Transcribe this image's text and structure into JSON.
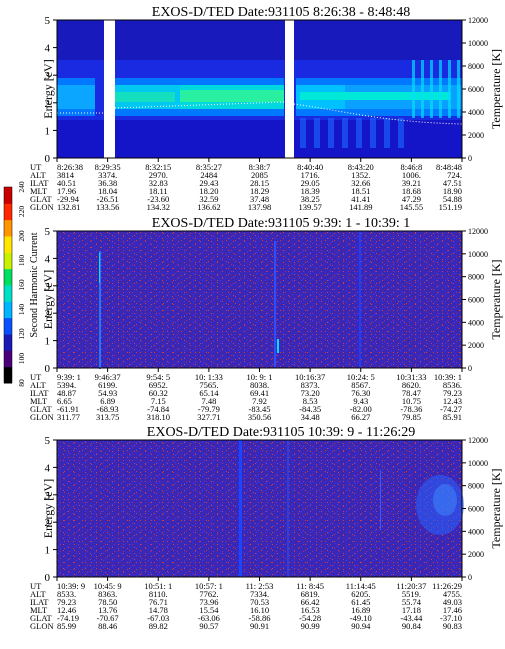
{
  "colorbar": {
    "label": "Second Harmonic Current",
    "ticks": [
      "240",
      "220",
      "200",
      "180",
      "160",
      "140",
      "120",
      "100",
      "80"
    ],
    "colors": [
      "#000000",
      "#4a0078",
      "#1a1ab4",
      "#0a50ff",
      "#00b4ff",
      "#00e0c8",
      "#00e060",
      "#c8f000",
      "#ffe600",
      "#ff9600",
      "#ff2800",
      "#c80000"
    ]
  },
  "chart_data": [
    {
      "type": "heatmap",
      "title": "EXOS-D/TED   Date:931105  8:26:38 - 8:48:48",
      "ylabel": "Energy [eV]",
      "ylabel_right": "Temperature [K]",
      "ylim": [
        0,
        5
      ],
      "yticks": [
        "0",
        "1",
        "2",
        "3",
        "4",
        "5"
      ],
      "ylim_right": [
        0,
        12000
      ],
      "yticks_right": [
        "0",
        "2000",
        "4000",
        "6000",
        "8000",
        "10000",
        "12000"
      ],
      "xlabels": [
        "8:26:38",
        "8:29:35",
        "8:32:15",
        "8:35:27",
        "8:38:7",
        "8:40:40",
        "8:43:20",
        "8:46:8",
        "8:48:48"
      ],
      "ephemeris": [
        {
          "name": "UT",
          "values": [
            "8:26:38",
            "8:29:35",
            "8:32:15",
            "8:35:27",
            "8:38:7",
            "8:40:40",
            "8:43:20",
            "8:46:8",
            "8:48:48"
          ]
        },
        {
          "name": "ALT",
          "values": [
            "3814",
            "3374.",
            "2970.",
            "2484",
            "2085",
            "1716.",
            "1352.",
            "1006.",
            "724."
          ]
        },
        {
          "name": "ILAT",
          "values": [
            "40.51",
            "36.38",
            "32.83",
            "29.43",
            "28.15",
            "29.05",
            "32.66",
            "39.21",
            "47.51"
          ]
        },
        {
          "name": "MLT",
          "values": [
            "17.96",
            "18.04",
            "18.11",
            "18.20",
            "18.29",
            "18.39",
            "18.51",
            "18.68",
            "18.90"
          ]
        },
        {
          "name": "GLAT",
          "values": [
            "-29.94",
            "-26.51",
            "-23.60",
            "32.59",
            "37.48",
            "38.25",
            "41.41",
            "47.29",
            "54.88"
          ]
        },
        {
          "name": "GLON",
          "values": [
            "132.81",
            "133.56",
            "134.32",
            "136.62",
            "137.98",
            "139.57",
            "141.89",
            "145.55",
            "151.19"
          ]
        }
      ]
    },
    {
      "type": "heatmap",
      "title": "EXOS-D/TED   Date:931105  9:39: 1 - 10:39: 1",
      "ylabel": "Energy [eV]",
      "ylabel_right": "Temperature [K]",
      "ylim": [
        0,
        5
      ],
      "yticks": [
        "0",
        "1",
        "2",
        "3",
        "4",
        "5"
      ],
      "ylim_right": [
        0,
        12000
      ],
      "yticks_right": [
        "0",
        "2000",
        "4000",
        "6000",
        "8000",
        "10000",
        "12000"
      ],
      "xlabels": [
        "9:39: 1",
        "9:46:37",
        "9:54: 5",
        "10: 1:33",
        "10: 9: 1",
        "10:16:37",
        "10:24: 5",
        "10:31:33",
        "10:39: 1"
      ],
      "ephemeris": [
        {
          "name": "UT",
          "values": [
            "9:39: 1",
            "9:46:37",
            "9:54: 5",
            "10: 1:33",
            "10: 9: 1",
            "10:16:37",
            "10:24: 5",
            "10:31:33",
            "10:39: 1"
          ]
        },
        {
          "name": "ALT",
          "values": [
            "5394.",
            "6199.",
            "6952.",
            "7565.",
            "8038.",
            "8373.",
            "8567.",
            "8620.",
            "8536."
          ]
        },
        {
          "name": "ILAT",
          "values": [
            "48.87",
            "54.93",
            "60.32",
            "65.14",
            "69.41",
            "73.20",
            "76.30",
            "78.47",
            "79.23"
          ]
        },
        {
          "name": "MLT",
          "values": [
            "6.65",
            "6.89",
            "7.15",
            "7.48",
            "7.92",
            "8.53",
            "9.43",
            "10.75",
            "12.43"
          ]
        },
        {
          "name": "GLAT",
          "values": [
            "-61.91",
            "-68.93",
            "-74.84",
            "-79.79",
            "-83.45",
            "-84.35",
            "-82.00",
            "-78.36",
            "-74.27"
          ]
        },
        {
          "name": "GLON",
          "values": [
            "311.77",
            "313.75",
            "318.10",
            "327.71",
            "350.56",
            "34.48",
            "66.27",
            "79.85",
            "85.91"
          ]
        }
      ]
    },
    {
      "type": "heatmap",
      "title": "EXOS-D/TED   Date:931105  10:39: 9 - 11:26:29",
      "ylabel": "Energy [eV]",
      "ylabel_right": "Temperature [K]",
      "ylim": [
        0,
        5
      ],
      "yticks": [
        "0",
        "1",
        "2",
        "3",
        "4",
        "5"
      ],
      "ylim_right": [
        0,
        12000
      ],
      "yticks_right": [
        "0",
        "2000",
        "4000",
        "6000",
        "8000",
        "10000",
        "12000"
      ],
      "xlabels": [
        "10:39: 9",
        "10:45: 9",
        "10:51: 1",
        "10:57: 1",
        "11: 2:53",
        "11: 8:45",
        "11:14:45",
        "11:20:37",
        "11:26:29"
      ],
      "ephemeris": [
        {
          "name": "UT",
          "values": [
            "10:39: 9",
            "10:45: 9",
            "10:51: 1",
            "10:57: 1",
            "11: 2:53",
            "11: 8:45",
            "11:14:45",
            "11:20:37",
            "11:26:29"
          ]
        },
        {
          "name": "ALT",
          "values": [
            "8533.",
            "8363.",
            "8110.",
            "7762.",
            "7334.",
            "6819.",
            "6205.",
            "5519.",
            "4755."
          ]
        },
        {
          "name": "ILAT",
          "values": [
            "79.23",
            "78.50",
            "76.71",
            "73.96",
            "70.53",
            "66.42",
            "61.45",
            "55.74",
            "49.03"
          ]
        },
        {
          "name": "MLT",
          "values": [
            "12.46",
            "13.76",
            "14.78",
            "15.54",
            "16.10",
            "16.53",
            "16.89",
            "17.18",
            "17.46"
          ]
        },
        {
          "name": "GLAT",
          "values": [
            "-74.19",
            "-70.67",
            "-67.03",
            "-63.06",
            "-58.86",
            "-54.28",
            "-49.10",
            "-43.44",
            "-37.10"
          ]
        },
        {
          "name": "GLON",
          "values": [
            "85.99",
            "88.46",
            "89.82",
            "90.57",
            "90.91",
            "90.99",
            "90.94",
            "90.84",
            "90.83"
          ]
        }
      ]
    }
  ]
}
